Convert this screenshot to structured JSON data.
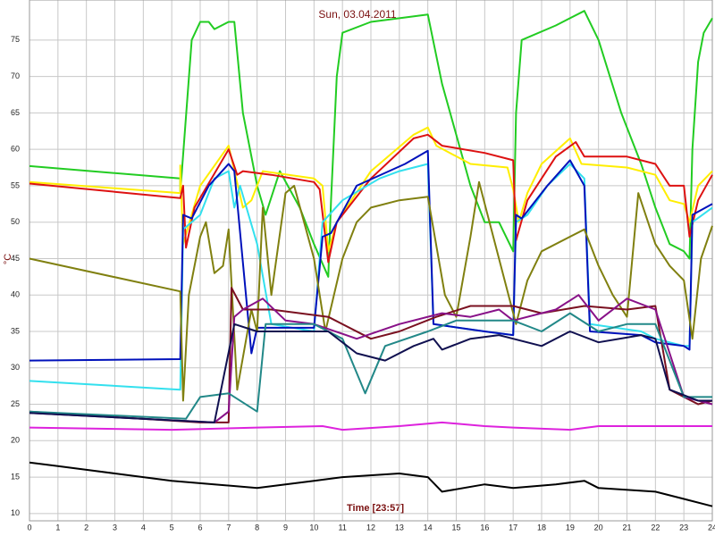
{
  "chart_data": {
    "type": "line",
    "title": "Sun, 03.04.2011",
    "xlabel": "Time [23:57]",
    "ylabel": "°C",
    "xlim": [
      0,
      24
    ],
    "ylim": [
      9,
      80.5
    ],
    "xticks": [
      0,
      1,
      2,
      3,
      4,
      5,
      6,
      7,
      8,
      9,
      10,
      11,
      12,
      13,
      14,
      15,
      16,
      17,
      18,
      19,
      20,
      21,
      22,
      23,
      24
    ],
    "yticks": [
      10,
      15,
      20,
      25,
      30,
      35,
      40,
      45,
      50,
      55,
      60,
      65,
      70,
      75
    ],
    "grid": true,
    "series": [
      {
        "color": "#22cc22",
        "x": [
          0,
          5.3,
          5.3,
          5.7,
          6,
          6.3,
          6.5,
          7,
          7.2,
          7.5,
          8,
          8.3,
          8.8,
          9.5,
          10,
          10.5,
          10.6,
          10.8,
          11,
          12,
          14,
          14.5,
          15.5,
          16,
          16.5,
          17,
          17.1,
          17.3,
          18.5,
          19.5,
          20,
          20.8,
          21.5,
          22,
          22.5,
          23,
          23.2,
          23.3,
          23.5,
          23.7,
          24
        ],
        "values": [
          57.7,
          56,
          54,
          75,
          77.5,
          77.5,
          76.5,
          77.5,
          77.5,
          65,
          55,
          51,
          57,
          52,
          47,
          42.5,
          53,
          70,
          76,
          77.5,
          78.5,
          69,
          55,
          50,
          50,
          46,
          65,
          75,
          77,
          79,
          75,
          65,
          58,
          52,
          47,
          46,
          45,
          60,
          72,
          76,
          78
        ]
      },
      {
        "color": "#ffee00",
        "x": [
          0,
          5.3,
          5.3,
          5.4,
          6,
          7,
          7.5,
          7.8,
          8.2,
          10,
          10.3,
          10.5,
          10.8,
          12,
          13.5,
          14,
          14.3,
          15.5,
          16.8,
          17,
          17.2,
          17.5,
          18,
          19,
          19.4,
          21,
          22,
          22.5,
          23,
          23.2,
          23.5,
          24
        ],
        "values": [
          55.5,
          54,
          57.8,
          47,
          55,
          60.5,
          52,
          53,
          57,
          56,
          55,
          46,
          50,
          57,
          62,
          63,
          60.5,
          58,
          57.5,
          54.5,
          50,
          54,
          58,
          61.5,
          58,
          57.5,
          56.5,
          53,
          52.5,
          50,
          55,
          57
        ]
      },
      {
        "color": "#dd1111",
        "x": [
          0,
          5.3,
          5.4,
          5.5,
          5.8,
          7,
          7.3,
          7.5,
          8.5,
          10,
          10.2,
          10.5,
          10.8,
          12,
          13.5,
          14,
          14.5,
          16,
          17,
          17.1,
          17.5,
          18.5,
          19.2,
          19.5,
          21,
          22,
          22.5,
          23,
          23.2,
          23.5,
          24
        ],
        "values": [
          55.3,
          53.3,
          55,
          46.5,
          52,
          60,
          56.5,
          57,
          56.5,
          55.5,
          54.5,
          44.5,
          50,
          56,
          61.5,
          62,
          60.5,
          59.5,
          58.5,
          47.5,
          53,
          59,
          61,
          59,
          59,
          58,
          55,
          55,
          48,
          53,
          56.5
        ]
      },
      {
        "color": "#33e0ee",
        "x": [
          0,
          5.3,
          5.4,
          6,
          6.5,
          7,
          7.2,
          7.4,
          8,
          8.5,
          10,
          10.3,
          11,
          12.3,
          13,
          14,
          14.2,
          16,
          17,
          17.1,
          17.5,
          18.2,
          19,
          19.5,
          19.7,
          21.5,
          22,
          23,
          23.2,
          23.3,
          24
        ],
        "values": [
          28.2,
          27,
          49,
          51,
          56,
          57,
          52,
          55,
          47,
          36,
          35,
          50,
          53,
          56,
          57,
          58,
          36,
          35,
          34.5,
          50,
          51,
          55,
          58,
          56,
          36,
          35,
          34,
          33,
          33,
          50,
          52
        ]
      },
      {
        "color": "#0011bb",
        "x": [
          0,
          5.3,
          5.4,
          5.7,
          6.3,
          7,
          7.2,
          7.8,
          8,
          10,
          10.3,
          10.6,
          11.5,
          13.2,
          14,
          14.2,
          16,
          17,
          17.1,
          17.3,
          18.2,
          19,
          19.5,
          19.7,
          21.5,
          22,
          23,
          23.2,
          23.3,
          24
        ],
        "values": [
          31,
          31.2,
          51,
          50.5,
          55,
          58,
          57,
          32,
          35.5,
          35.5,
          48,
          48.5,
          55,
          58,
          59.8,
          36,
          35,
          34.5,
          51,
          50.5,
          55,
          58.5,
          55,
          35,
          34.5,
          33.5,
          33,
          32.5,
          51,
          52.5
        ]
      },
      {
        "color": "#808010",
        "x": [
          0,
          5.3,
          5.4,
          5.6,
          6,
          6.2,
          6.5,
          6.8,
          7,
          7.3,
          7.8,
          8,
          8.2,
          8.5,
          9,
          9.3,
          10,
          10.4,
          11,
          11.5,
          12,
          13,
          14,
          14.6,
          15,
          15.5,
          15.8,
          16.5,
          17.1,
          17.5,
          18,
          19.5,
          20,
          20.5,
          21,
          21.4,
          22,
          22.5,
          23,
          23.3,
          23.6,
          24
        ],
        "values": [
          45,
          40.5,
          25.5,
          40,
          48,
          50,
          43,
          44,
          49,
          27,
          38,
          35,
          52,
          40,
          54,
          55,
          45,
          35,
          45,
          50,
          52,
          53,
          53.5,
          40,
          37,
          48,
          55.5,
          45,
          36,
          42,
          46,
          49,
          44,
          40,
          37,
          54,
          47,
          44,
          42,
          34,
          45,
          49.5
        ]
      },
      {
        "color": "#7a1020",
        "x": [
          0,
          6,
          7,
          7.1,
          7.5,
          8.5,
          10.5,
          12,
          13,
          14.3,
          15.5,
          17,
          18,
          19.5,
          21,
          22,
          22.5,
          23.5,
          24
        ],
        "values": [
          24,
          22.5,
          22.5,
          41,
          38,
          38,
          37,
          34,
          35,
          37,
          38.5,
          38.5,
          37.5,
          38.5,
          38,
          38.5,
          27,
          25,
          25.5
        ]
      },
      {
        "color": "#881188",
        "x": [
          0,
          6.5,
          7,
          7.2,
          7.5,
          8.2,
          9,
          10,
          11.5,
          13,
          14.5,
          15.5,
          16.5,
          17,
          18.5,
          19.3,
          20,
          21,
          22,
          23,
          24
        ],
        "values": [
          23.8,
          22.5,
          24,
          37,
          38,
          39.5,
          36.5,
          36,
          34,
          36,
          37.5,
          37,
          38,
          36.5,
          38,
          40,
          36.5,
          39.5,
          38,
          26,
          25
        ]
      },
      {
        "color": "#228888",
        "x": [
          0,
          5.5,
          6,
          7,
          8,
          8.3,
          10,
          11,
          11.8,
          12.5,
          14,
          15,
          17,
          18,
          19,
          20,
          21,
          22,
          23,
          24
        ],
        "values": [
          24,
          23,
          26,
          26.5,
          24,
          36,
          36,
          34,
          26.5,
          33,
          35,
          36.5,
          36.5,
          35,
          37.5,
          35,
          36,
          36,
          26,
          26
        ]
      },
      {
        "color": "#101050",
        "x": [
          0,
          6.5,
          7.2,
          8,
          10.5,
          11.5,
          12.5,
          13.5,
          14.2,
          14.5,
          15.5,
          16.5,
          17,
          18,
          19,
          20,
          21.5,
          22,
          22.5,
          23.5,
          24
        ],
        "values": [
          23.8,
          22.5,
          36,
          35,
          35,
          32,
          31,
          33,
          34,
          32.5,
          34,
          34.5,
          34,
          33,
          35,
          33.5,
          34.5,
          34,
          27,
          25.5,
          25.5
        ]
      },
      {
        "color": "#dd22dd",
        "x": [
          0,
          5,
          8,
          10.3,
          11,
          13,
          14.5,
          16,
          17,
          19,
          20,
          24
        ],
        "values": [
          21.8,
          21.5,
          21.8,
          22,
          21.5,
          22,
          22.5,
          22,
          21.8,
          21.5,
          22,
          22
        ]
      },
      {
        "color": "#000000",
        "x": [
          0,
          1,
          2,
          3,
          5,
          6.5,
          8,
          10,
          11,
          13,
          14,
          14.5,
          16,
          17,
          18.5,
          19.5,
          20,
          22,
          23,
          24
        ],
        "values": [
          17,
          16.5,
          16,
          15.5,
          14.5,
          14,
          13.5,
          14.5,
          15,
          15.5,
          15,
          13,
          14,
          13.5,
          14,
          14.5,
          13.5,
          13,
          12,
          11
        ]
      }
    ]
  }
}
